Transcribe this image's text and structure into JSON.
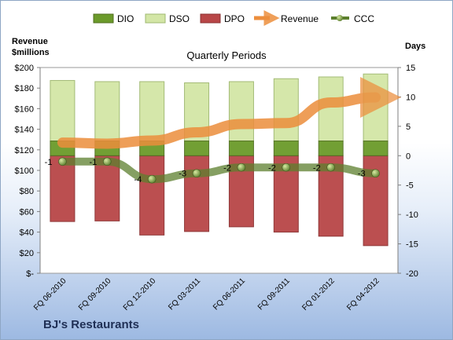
{
  "chart_data": {
    "type": "bar",
    "title": "Quarterly Periods",
    "company": "BJ's Restaurants",
    "left_axis_label": [
      "Revenue",
      "$millions"
    ],
    "right_axis_label": "Days",
    "left_ticks": [
      "$200",
      "$180",
      "$160",
      "$140",
      "$120",
      "$100",
      "$80",
      "$60",
      "$40",
      "$20",
      "$-"
    ],
    "right_ticks": [
      "15",
      "10",
      "5",
      "0",
      "-5",
      "-10",
      "-15",
      "-20"
    ],
    "left_ylim": [
      0,
      200
    ],
    "right_ylim": [
      -20,
      15
    ],
    "categories": [
      "FQ 06-2010",
      "FQ 09-2010",
      "FQ 12-2010",
      "FQ 03-2011",
      "FQ 06-2011",
      "FQ 09-2011",
      "FQ 01-2012",
      "FQ 04-2012"
    ],
    "series": [
      {
        "name": "DIO",
        "axis": "days",
        "color": "#6b9a2a",
        "base": [
          0,
          0,
          0,
          0,
          0,
          0,
          0,
          0
        ],
        "values": [
          2.5,
          2.5,
          2.5,
          2.5,
          2.5,
          2.5,
          2.5,
          2.5
        ]
      },
      {
        "name": "DSO",
        "axis": "days",
        "color": "#d3e6a6",
        "base": [
          2.5,
          2.5,
          2.5,
          2.5,
          2.5,
          2.5,
          2.5,
          2.5
        ],
        "values": [
          10.3,
          10.1,
          10.1,
          9.9,
          10.1,
          10.6,
          10.9,
          11.4
        ]
      },
      {
        "name": "DPO",
        "axis": "days",
        "color": "#b84647",
        "base": [
          0,
          0,
          0,
          0,
          0,
          0,
          0,
          0
        ],
        "values": [
          -11.2,
          -11.1,
          -13.5,
          -12.9,
          -12.1,
          -13.0,
          -13.7,
          -15.3
        ]
      },
      {
        "name": "Revenue",
        "axis": "revenue",
        "color": "#ec8e3c",
        "values": [
          127,
          126,
          129,
          137,
          145,
          146,
          166,
          171
        ]
      },
      {
        "name": "CCC",
        "axis": "days",
        "color": "#5c7f2e",
        "values": [
          -1,
          -1,
          -4,
          -3,
          -2,
          -2,
          -2,
          -3
        ],
        "labels": [
          "-1",
          "-1",
          "-4",
          "-3",
          "-2",
          "-2",
          "-2",
          "-3"
        ]
      }
    ],
    "legend_placement": "top",
    "grid": false
  }
}
